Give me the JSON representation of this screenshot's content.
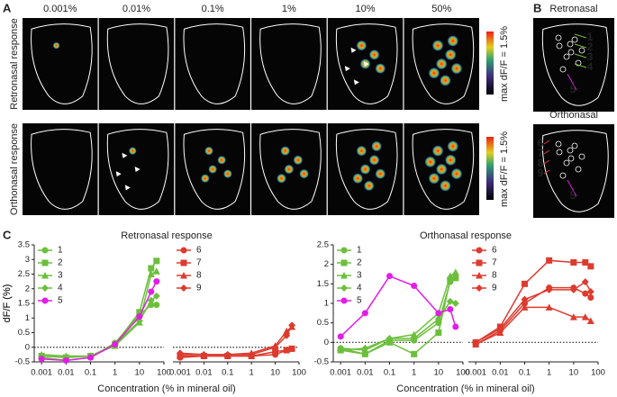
{
  "panel_labels": {
    "a": "A",
    "b": "B",
    "c": "C"
  },
  "panel_a": {
    "concentrations": [
      "0.001%",
      "0.01%",
      "0.1%",
      "1%",
      "10%",
      "50%"
    ],
    "rows": [
      "Retronasal response",
      "Orthonasal response"
    ],
    "colorbar_label": "max dF/F = 1.5%"
  },
  "panel_b": {
    "titles": [
      "Retronasal",
      "Orthonasal"
    ],
    "retronasal_labels": [
      "1",
      "2",
      "3",
      "4",
      "5"
    ],
    "orthonasal_labels": [
      "6",
      "7",
      "8",
      "9",
      "5"
    ]
  },
  "chart_data": [
    {
      "type": "line",
      "title": "Retronasal response",
      "xlabel": "Concentration (% in mineral oil)",
      "ylabel": "dF/F (%)",
      "x": [
        0.001,
        0.01,
        0.1,
        1,
        10,
        30,
        50
      ],
      "xscale": "log",
      "xlim": [
        0.0005,
        100
      ],
      "xticks": [
        0.001,
        0.01,
        0.1,
        1,
        10,
        100
      ],
      "ylim": [
        -0.5,
        3.5
      ],
      "yticks": [
        -0.5,
        0.0,
        0.5,
        1.0,
        1.5,
        2.0,
        2.5,
        3.0,
        3.5
      ],
      "reference_line": 0,
      "legend": "upper left",
      "series": [
        {
          "name": "1",
          "color": "#6cbf3c",
          "marker": "circle",
          "values": [
            -0.35,
            -0.45,
            -0.35,
            0.15,
            1.1,
            1.45,
            1.45
          ]
        },
        {
          "name": "2",
          "color": "#6cbf3c",
          "marker": "square",
          "values": [
            -0.3,
            -0.35,
            -0.3,
            0.1,
            1.2,
            2.7,
            2.95
          ]
        },
        {
          "name": "3",
          "color": "#6cbf3c",
          "marker": "triangle",
          "values": [
            -0.25,
            -0.3,
            -0.3,
            0.05,
            0.85,
            2.5,
            2.6
          ]
        },
        {
          "name": "4",
          "color": "#6cbf3c",
          "marker": "diamond",
          "values": [
            -0.3,
            -0.35,
            -0.3,
            0.1,
            0.9,
            1.6,
            1.75
          ]
        },
        {
          "name": "5",
          "color": "#e21de6",
          "marker": "circle",
          "values": [
            -0.4,
            -0.45,
            -0.35,
            0.1,
            1.05,
            1.9,
            2.25
          ]
        }
      ]
    },
    {
      "type": "line",
      "x": [
        0.001,
        0.01,
        0.1,
        1,
        10,
        30,
        50
      ],
      "xscale": "log",
      "xlim": [
        0.0005,
        100
      ],
      "xticks": [
        0.001,
        0.01,
        0.1,
        1,
        10,
        100
      ],
      "ylim": [
        -0.5,
        3.5
      ],
      "reference_line": 0,
      "legend": "upper left",
      "series": [
        {
          "name": "6",
          "color": "#dd3b2e",
          "marker": "circle",
          "values": [
            -0.35,
            -0.3,
            -0.3,
            -0.3,
            -0.25,
            -0.1,
            -0.05
          ]
        },
        {
          "name": "7",
          "color": "#dd3b2e",
          "marker": "square",
          "values": [
            -0.3,
            -0.3,
            -0.3,
            -0.3,
            -0.15,
            -0.1,
            -0.05
          ]
        },
        {
          "name": "8",
          "color": "#dd3b2e",
          "marker": "triangle",
          "values": [
            -0.25,
            -0.25,
            -0.25,
            -0.2,
            0.05,
            0.55,
            0.7
          ]
        },
        {
          "name": "9",
          "color": "#dd3b2e",
          "marker": "diamond",
          "values": [
            -0.2,
            -0.25,
            -0.25,
            -0.25,
            0,
            0.4,
            0.75
          ]
        }
      ]
    },
    {
      "type": "line",
      "title": "Orthonasal response",
      "xlabel": "Concentration (% in mineral oil)",
      "ylabel": "dF/F (%)",
      "x": [
        0.001,
        0.01,
        0.1,
        1,
        10,
        30,
        50
      ],
      "xscale": "log",
      "xlim": [
        0.0005,
        100
      ],
      "xticks": [
        0.001,
        0.01,
        0.1,
        1,
        10,
        100
      ],
      "ylim": [
        -0.5,
        2.5
      ],
      "yticks": [
        -0.5,
        0.0,
        0.5,
        1.0,
        1.5,
        2.0,
        2.5
      ],
      "reference_line": 0,
      "legend": "upper left",
      "series": [
        {
          "name": "1",
          "color": "#6cbf3c",
          "marker": "circle",
          "values": [
            -0.15,
            -0.3,
            0.05,
            0.05,
            0.5,
            1.55,
            1.65
          ]
        },
        {
          "name": "2",
          "color": "#6cbf3c",
          "marker": "square",
          "values": [
            -0.2,
            -0.3,
            0.0,
            -0.3,
            0.25,
            1.6,
            1.65
          ]
        },
        {
          "name": "3",
          "color": "#6cbf3c",
          "marker": "triangle",
          "values": [
            -0.15,
            -0.2,
            0.1,
            0.2,
            0.75,
            1.7,
            1.8
          ]
        },
        {
          "name": "4",
          "color": "#6cbf3c",
          "marker": "diamond",
          "values": [
            -0.2,
            -0.15,
            0.1,
            0.1,
            0.6,
            1.05,
            1.0
          ]
        },
        {
          "name": "5",
          "color": "#e21de6",
          "marker": "circle",
          "values": [
            0.15,
            0.75,
            1.7,
            1.45,
            0.75,
            0.85,
            0.4
          ]
        }
      ]
    },
    {
      "type": "line",
      "x": [
        0.001,
        0.01,
        0.1,
        1,
        10,
        30,
        50
      ],
      "xscale": "log",
      "xlim": [
        0.0005,
        100
      ],
      "xticks": [
        0.001,
        0.01,
        0.1,
        1,
        10,
        100
      ],
      "ylim": [
        -0.5,
        2.5
      ],
      "reference_line": 0,
      "legend": "upper left",
      "series": [
        {
          "name": "6",
          "color": "#dd3b2e",
          "marker": "circle",
          "values": [
            -0.05,
            0.3,
            1.0,
            1.4,
            1.4,
            1.25,
            1.15
          ]
        },
        {
          "name": "7",
          "color": "#dd3b2e",
          "marker": "square",
          "values": [
            0.0,
            0.4,
            1.5,
            2.1,
            2.05,
            2.05,
            1.95
          ]
        },
        {
          "name": "8",
          "color": "#dd3b2e",
          "marker": "triangle",
          "values": [
            -0.05,
            0.25,
            0.9,
            0.9,
            0.65,
            0.65,
            0.55
          ]
        },
        {
          "name": "9",
          "color": "#dd3b2e",
          "marker": "diamond",
          "values": [
            0.0,
            0.35,
            1.1,
            1.35,
            1.35,
            1.55,
            1.3
          ]
        }
      ]
    }
  ]
}
